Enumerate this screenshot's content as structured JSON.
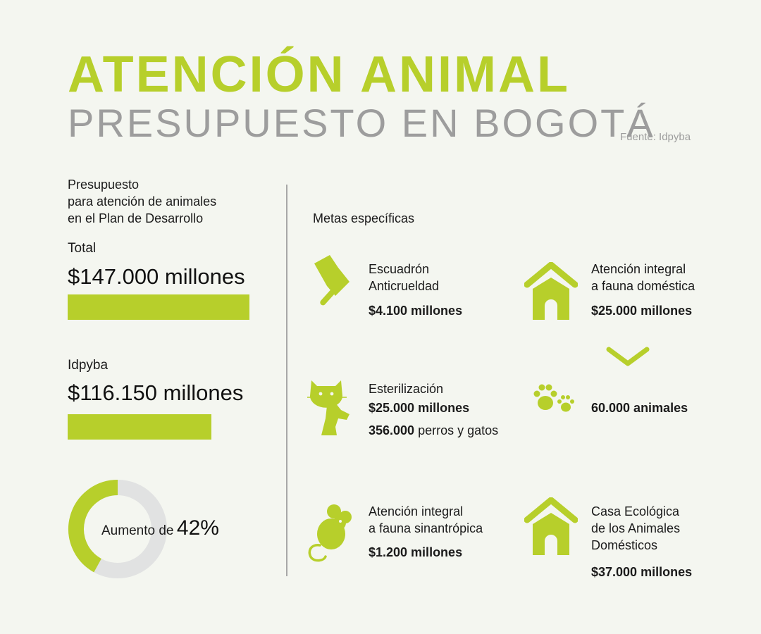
{
  "header": {
    "title": "ATENCIÓN ANIMAL",
    "subtitle": "PRESUPUESTO EN BOGOTÁ",
    "source": "Fuente: Idpyba"
  },
  "left": {
    "heading": [
      "Presupuesto",
      "para atención de animales",
      "en el Plan de Desarrollo"
    ],
    "total_label": "Total",
    "total_value": "$147.000 millones",
    "idpyba_label": "Idpyba",
    "idpyba_value": "$116.150 millones",
    "donut_prefix": "Aumento de",
    "donut_percent": "42%"
  },
  "metas": {
    "heading": "Metas específicas",
    "items": [
      {
        "label": [
          "Escuadrón",
          "Anticrueldad"
        ],
        "value": "$4.100 millones",
        "icon": "shield-icon"
      },
      {
        "label": [
          "Atención integral",
          "a fauna doméstica"
        ],
        "value": "$25.000 millones",
        "icon": "doghouse-icon"
      },
      {
        "label": [
          "Esterilización"
        ],
        "value": "$25.000 millones",
        "extra_bold": "356.000",
        "extra_text": " perros y gatos",
        "icon": "cat-dog-icon"
      },
      {
        "value": "60.000 animales",
        "icon": "paw-icon"
      },
      {
        "label": [
          "Atención integral",
          "a fauna sinantrópica"
        ],
        "value": "$1.200 millones",
        "icon": "mouse-icon"
      },
      {
        "label": [
          "Casa Ecológica",
          "de los Animales",
          "Domésticos"
        ],
        "value": "$37.000 millones",
        "icon": "house-icon"
      }
    ]
  },
  "colors": {
    "accent": "#b7cf2b",
    "gray": "#9d9d9d",
    "ring_gray": "#e1e2e2",
    "background": "#f4f6f0"
  },
  "chart_data": [
    {
      "type": "bar",
      "categories": [
        "Total",
        "Idpyba"
      ],
      "values": [
        147000,
        116150
      ],
      "unit": "millones"
    },
    {
      "type": "pie",
      "categories": [
        "Aumento",
        ""
      ],
      "values": [
        42,
        58
      ]
    }
  ]
}
